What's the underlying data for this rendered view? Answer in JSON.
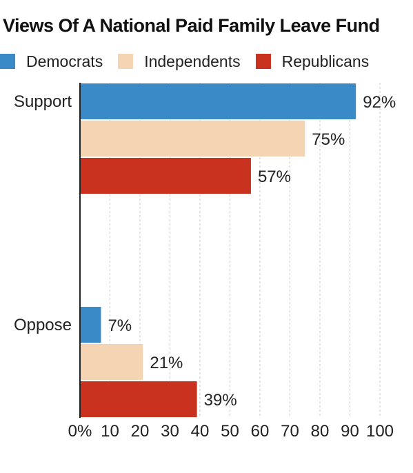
{
  "chart_data": {
    "type": "bar",
    "orientation": "horizontal",
    "title": "Views Of A National Paid Family Leave Fund",
    "categories": [
      "Support",
      "Oppose"
    ],
    "series": [
      {
        "name": "Democrats",
        "color": "#3a8ac8",
        "values": [
          92,
          7
        ],
        "labels": [
          "92%",
          "7%"
        ]
      },
      {
        "name": "Independents",
        "color": "#f5d4b4",
        "values": [
          75,
          21
        ],
        "labels": [
          "75%",
          "21%"
        ]
      },
      {
        "name": "Republicans",
        "color": "#c8321f",
        "values": [
          57,
          39
        ],
        "labels": [
          "57%",
          "39%"
        ]
      }
    ],
    "xlim": [
      0,
      100
    ],
    "xticks": [
      "0%",
      "10",
      "20",
      "30",
      "40",
      "50",
      "60",
      "70",
      "80",
      "90",
      "100"
    ],
    "grid": "vertical dashed",
    "legend": "top"
  }
}
